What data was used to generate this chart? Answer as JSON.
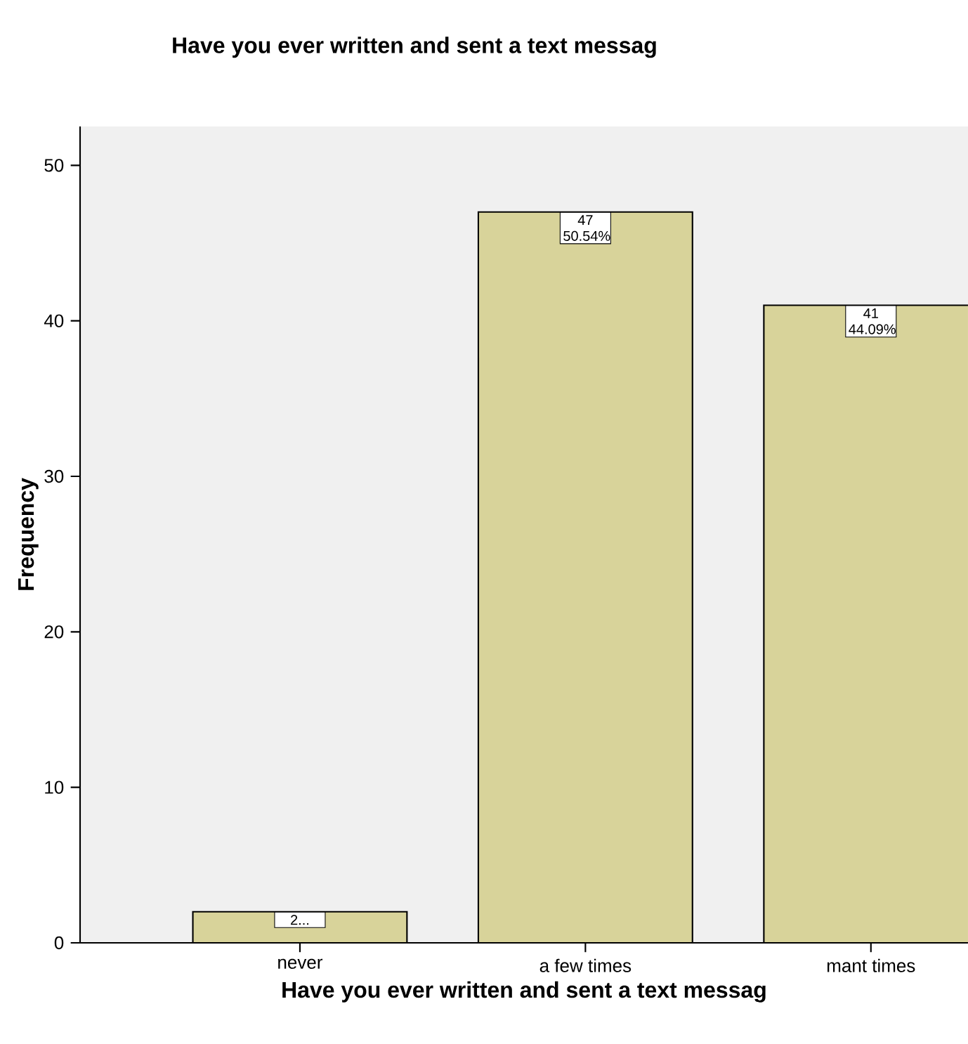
{
  "chart_data": {
    "type": "bar",
    "title": "Have you ever written and sent a text messag",
    "xlabel": "Have you ever written and sent a text messag",
    "ylabel": "Frequency",
    "categories": [
      "never",
      "a few times",
      "mant times"
    ],
    "values": [
      2,
      47,
      41
    ],
    "value_labels": [
      "2...",
      "47 50.54%",
      "41 44.09%"
    ],
    "color": "#d8d39a",
    "ylim": [
      0,
      52.5
    ],
    "yticks": [
      0,
      10,
      20,
      30,
      40,
      50
    ]
  }
}
